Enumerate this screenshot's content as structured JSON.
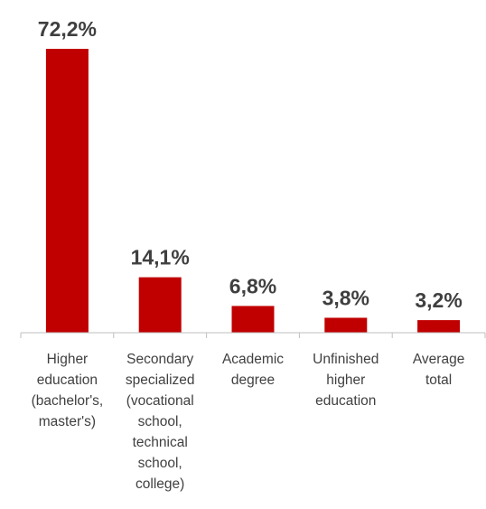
{
  "chart_data": {
    "type": "bar",
    "categories": [
      [
        "Higher",
        "education",
        "(bachelor's,",
        "master's)"
      ],
      [
        "Secondary",
        "specialized",
        "(vocational",
        "school,",
        "technical",
        "school,",
        "college)"
      ],
      [
        "Academic",
        "degree"
      ],
      [
        "Unfinished",
        "higher",
        "education"
      ],
      [
        "Average",
        "total"
      ]
    ],
    "values": [
      72.2,
      14.1,
      6.8,
      3.8,
      3.2
    ],
    "data_labels": [
      "72,2%",
      "14,1%",
      "6,8%",
      "3,8%",
      "3,2%"
    ],
    "title": "",
    "xlabel": "",
    "ylabel": "",
    "ylim": [
      0,
      72.2
    ],
    "grid": false,
    "legend": "none",
    "bar_color": "#c00000",
    "axis_color": "#bfbfbf"
  }
}
